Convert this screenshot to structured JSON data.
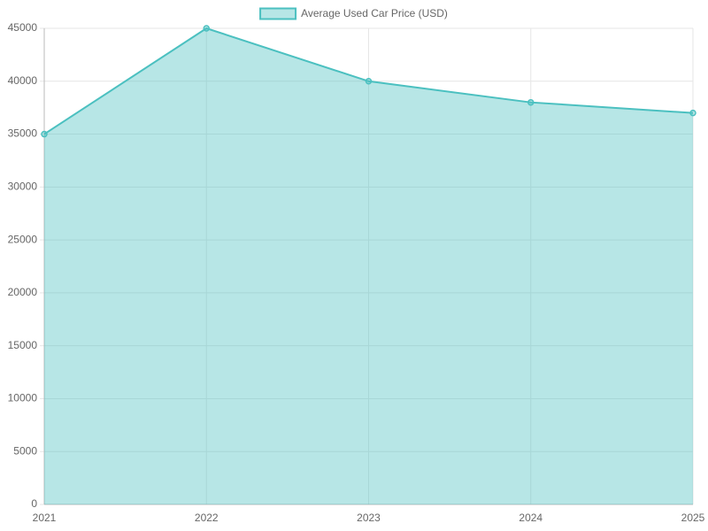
{
  "chart_data": {
    "type": "area",
    "categories": [
      "2021",
      "2022",
      "2023",
      "2024",
      "2025"
    ],
    "series": [
      {
        "name": "Average Used Car Price (USD)",
        "color": "#4bc0c0",
        "fill": "rgba(75,192,192,0.4)",
        "values": [
          35000,
          45000,
          40000,
          38000,
          37000
        ]
      }
    ],
    "ylim": [
      0,
      45000
    ],
    "yticks": [
      0,
      5000,
      10000,
      15000,
      20000,
      25000,
      30000,
      35000,
      40000,
      45000
    ],
    "grid": true,
    "legend": "top"
  }
}
